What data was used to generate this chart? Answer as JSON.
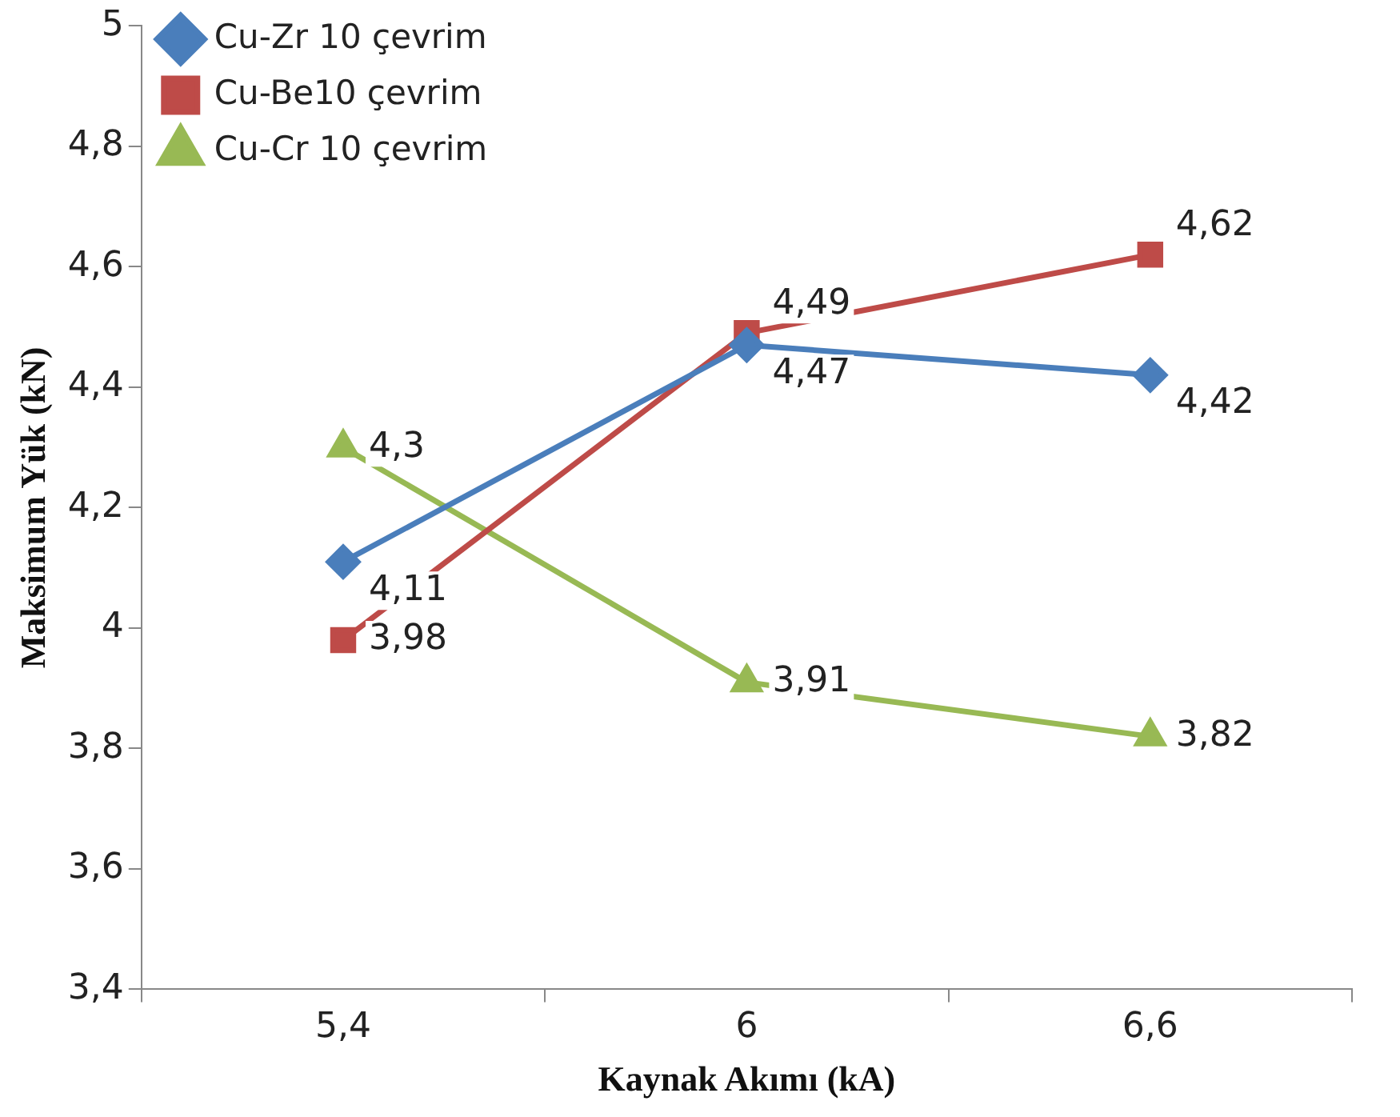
{
  "chart_data": {
    "type": "line",
    "xlabel": "Kaynak Akımı (kA)",
    "ylabel": "Maksimum Yük (kN)",
    "categories": [
      "5,4",
      "6",
      "6,6"
    ],
    "series": [
      {
        "name": "Cu-Zr 10 çevrim",
        "color": "#4a7ebb",
        "marker": "diamond",
        "values": [
          4.11,
          4.47,
          4.42
        ],
        "value_labels": [
          "4,11",
          "4,47",
          "4,42"
        ]
      },
      {
        "name": "Cu-Be10 çevrim",
        "color": "#be4b48",
        "marker": "square",
        "values": [
          3.98,
          4.49,
          4.62
        ],
        "value_labels": [
          "3,98",
          "4,49",
          "4,62"
        ]
      },
      {
        "name": "Cu-Cr 10 çevrim",
        "color": "#98b954",
        "marker": "triangle",
        "values": [
          4.3,
          3.91,
          3.82
        ],
        "value_labels": [
          "4,3",
          "3,91",
          "3,82"
        ]
      }
    ],
    "ylim": [
      3.4,
      5
    ],
    "yticks": [
      {
        "value": 3.4,
        "label": "3,4"
      },
      {
        "value": 3.6,
        "label": "3,6"
      },
      {
        "value": 3.8,
        "label": "3,8"
      },
      4,
      {
        "value": 4.2,
        "label": "4,2"
      },
      {
        "value": 4.4,
        "label": "4,4"
      },
      {
        "value": 4.6,
        "label": "4,6"
      },
      {
        "value": 4.8,
        "label": "4,8"
      },
      5
    ],
    "grid": false,
    "legend": "top left"
  }
}
